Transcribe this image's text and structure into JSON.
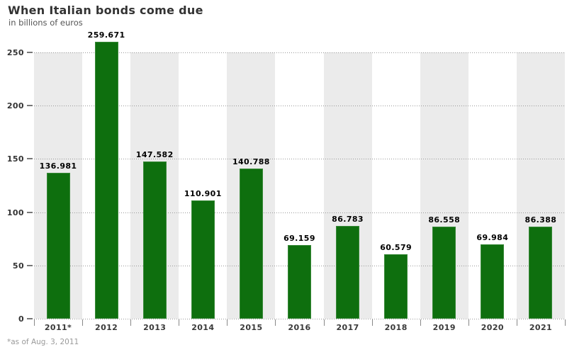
{
  "header": {
    "title": "When Italian bonds come due",
    "subtitle": "in billions of euros"
  },
  "footnote": "*as of Aug. 3, 2011",
  "colors": {
    "bar": "#0e6f0e",
    "band": "#ebebeb",
    "grid": "#999999",
    "axis_dash": "#777777",
    "tick": "#888888",
    "title": "#333333",
    "subtitle": "#555555",
    "value_label": "#000000",
    "category_label": "#3a3a3a",
    "footnote": "#9a9a9a"
  },
  "chart_data": {
    "type": "bar",
    "title": "When Italian bonds come due",
    "subtitle": "in billions of euros",
    "categories": [
      "2011*",
      "2012",
      "2013",
      "2014",
      "2015",
      "2016",
      "2017",
      "2018",
      "2019",
      "2020",
      "2021"
    ],
    "values": [
      136.981,
      259.671,
      147.582,
      110.901,
      140.788,
      69.159,
      86.783,
      60.579,
      86.558,
      69.984,
      86.388
    ],
    "value_labels": [
      "136.981",
      "259.671",
      "147.582",
      "110.901",
      "140.788",
      "69.159",
      "86.783",
      "60.579",
      "86.558",
      "69.984",
      "86.388"
    ],
    "xlabel": "",
    "ylabel": "in billions of euros",
    "ylim": [
      0,
      250
    ],
    "yticks": [
      0,
      50,
      100,
      150,
      200,
      250
    ],
    "grid": "horizontal-dotted",
    "legend": "none",
    "alternating_column_bands": "gray bands on odd columns starting with 2011*",
    "footnote": "*as of Aug. 3, 2011"
  }
}
